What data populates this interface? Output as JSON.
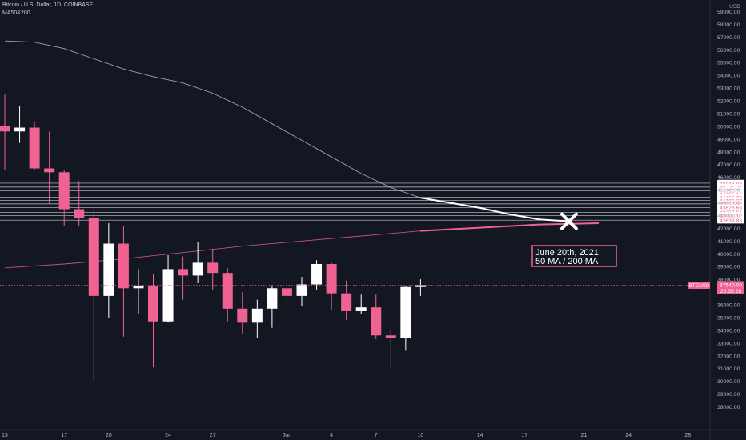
{
  "header": {
    "symbol_line": "Bitcoin / U.S. Dollar, 1D, COINBASE",
    "indicator": "MA50&200"
  },
  "price_axis": {
    "currency": "USD"
  },
  "colors": {
    "background": "#131722",
    "bull_candle": "#ffffff",
    "bear_candle": "#f06292",
    "ma50": "#cfd3dc",
    "ma200": "#f06292",
    "level_line": "#e8eaf0",
    "annotation_border": "#f06292"
  },
  "annotation": {
    "line1": "June 20th, 2021",
    "line2": "50 MA / 200 MA"
  },
  "chart_data": {
    "type": "candlestick",
    "title": "Bitcoin / U.S. Dollar, 1D, COINBASE",
    "x_ticks": [
      "13",
      "17",
      "20",
      "24",
      "27",
      "Jun",
      "4",
      "7",
      "10",
      "14",
      "17",
      "21",
      "24",
      "28"
    ],
    "y_ticks": [
      28000,
      29000,
      30000,
      31000,
      32000,
      33000,
      34000,
      35000,
      36000,
      37000,
      38000,
      39000,
      40000,
      41000,
      42000,
      43000,
      44000,
      45000,
      46000,
      47000,
      48000,
      49000,
      50000,
      51000,
      52000,
      53000,
      54000,
      55000,
      56000,
      57000,
      58000,
      59000
    ],
    "y_tick_labels": [
      "28000.00",
      "29000.00",
      "30000.00",
      "31000.00",
      "32000.00",
      "33000.00",
      "34000.00",
      "35000.00",
      "36000.00",
      "37000.00",
      "38000.00",
      "39000.00",
      "40000.00",
      "41000.00",
      "42000.00",
      "43000.00",
      "44000.00",
      "45000.00",
      "46000.00",
      "47000.00",
      "48000.00",
      "49000.00",
      "50000.00",
      "51000.00",
      "52000.00",
      "53000.00",
      "54000.00",
      "55000.00",
      "56000.00",
      "57000.00",
      "58000.00",
      "59000.00"
    ],
    "ylim": [
      27500,
      59700
    ],
    "dates": [
      "2021-05-13",
      "2021-05-14",
      "2021-05-15",
      "2021-05-16",
      "2021-05-17",
      "2021-05-18",
      "2021-05-19",
      "2021-05-20",
      "2021-05-21",
      "2021-05-22",
      "2021-05-23",
      "2021-05-24",
      "2021-05-25",
      "2021-05-26",
      "2021-05-27",
      "2021-05-28",
      "2021-05-29",
      "2021-05-30",
      "2021-05-31",
      "2021-06-01",
      "2021-06-02",
      "2021-06-03",
      "2021-06-04",
      "2021-06-05",
      "2021-06-06",
      "2021-06-07",
      "2021-06-08",
      "2021-06-09",
      "2021-06-10"
    ],
    "candles": [
      {
        "date": "2021-05-13",
        "open": 50000,
        "high": 52500,
        "low": 46600,
        "close": 49600
      },
      {
        "date": "2021-05-14",
        "open": 49600,
        "high": 51600,
        "low": 48700,
        "close": 49900
      },
      {
        "date": "2021-05-15",
        "open": 49900,
        "high": 50400,
        "low": 46600,
        "close": 46700
      },
      {
        "date": "2021-05-16",
        "open": 46700,
        "high": 49600,
        "low": 43900,
        "close": 46400
      },
      {
        "date": "2021-05-17",
        "open": 46400,
        "high": 46600,
        "low": 42200,
        "close": 43500
      },
      {
        "date": "2021-05-18",
        "open": 43500,
        "high": 45700,
        "low": 42200,
        "close": 42800
      },
      {
        "date": "2021-05-19",
        "open": 42800,
        "high": 43500,
        "low": 30000,
        "close": 36700
      },
      {
        "date": "2021-05-20",
        "open": 36700,
        "high": 42400,
        "low": 35000,
        "close": 40800
      },
      {
        "date": "2021-05-21",
        "open": 40800,
        "high": 42200,
        "low": 33500,
        "close": 37300
      },
      {
        "date": "2021-05-22",
        "open": 37300,
        "high": 38800,
        "low": 35300,
        "close": 37500
      },
      {
        "date": "2021-05-23",
        "open": 37500,
        "high": 38400,
        "low": 31100,
        "close": 34700
      },
      {
        "date": "2021-05-24",
        "open": 34700,
        "high": 39900,
        "low": 34600,
        "close": 38800
      },
      {
        "date": "2021-05-25",
        "open": 38800,
        "high": 39800,
        "low": 36400,
        "close": 38300
      },
      {
        "date": "2021-05-26",
        "open": 38300,
        "high": 40900,
        "low": 37700,
        "close": 39300
      },
      {
        "date": "2021-05-27",
        "open": 39300,
        "high": 40400,
        "low": 37200,
        "close": 38500
      },
      {
        "date": "2021-05-28",
        "open": 38500,
        "high": 38900,
        "low": 34700,
        "close": 35700
      },
      {
        "date": "2021-05-29",
        "open": 35700,
        "high": 37000,
        "low": 33700,
        "close": 34600
      },
      {
        "date": "2021-05-30",
        "open": 34600,
        "high": 36400,
        "low": 33400,
        "close": 35700
      },
      {
        "date": "2021-05-31",
        "open": 35700,
        "high": 37500,
        "low": 34200,
        "close": 37300
      },
      {
        "date": "2021-06-01",
        "open": 37300,
        "high": 37900,
        "low": 35700,
        "close": 36700
      },
      {
        "date": "2021-06-02",
        "open": 36700,
        "high": 38200,
        "low": 35900,
        "close": 37600
      },
      {
        "date": "2021-06-03",
        "open": 37600,
        "high": 39500,
        "low": 37200,
        "close": 39200
      },
      {
        "date": "2021-06-04",
        "open": 39200,
        "high": 39300,
        "low": 35600,
        "close": 36900
      },
      {
        "date": "2021-06-05",
        "open": 36900,
        "high": 37900,
        "low": 34800,
        "close": 35500
      },
      {
        "date": "2021-06-06",
        "open": 35500,
        "high": 36800,
        "low": 35300,
        "close": 35800
      },
      {
        "date": "2021-06-07",
        "open": 35800,
        "high": 36800,
        "low": 33300,
        "close": 33600
      },
      {
        "date": "2021-06-08",
        "open": 33600,
        "high": 34000,
        "low": 31000,
        "close": 33400
      },
      {
        "date": "2021-06-09",
        "open": 33400,
        "high": 37500,
        "low": 32400,
        "close": 37400
      },
      {
        "date": "2021-06-10",
        "open": 37400,
        "high": 38000,
        "low": 36700,
        "close": 37540
      }
    ],
    "series": [
      {
        "name": "MA50",
        "points": [
          [
            "2021-05-13",
            56700
          ],
          [
            "2021-05-15",
            56600
          ],
          [
            "2021-05-17",
            56100
          ],
          [
            "2021-05-19",
            55300
          ],
          [
            "2021-05-21",
            54500
          ],
          [
            "2021-05-23",
            53900
          ],
          [
            "2021-05-25",
            53400
          ],
          [
            "2021-05-27",
            52600
          ],
          [
            "2021-05-29",
            51500
          ],
          [
            "2021-05-31",
            50200
          ],
          [
            "2021-06-02",
            48900
          ],
          [
            "2021-06-04",
            47600
          ],
          [
            "2021-06-06",
            46300
          ],
          [
            "2021-06-08",
            45200
          ],
          [
            "2021-06-10",
            44400
          ],
          [
            "2021-06-12",
            44000
          ],
          [
            "2021-06-14",
            43600
          ],
          [
            "2021-06-16",
            43100
          ],
          [
            "2021-06-18",
            42700
          ],
          [
            "2021-06-20",
            42550
          ]
        ]
      },
      {
        "name": "MA200",
        "points": [
          [
            "2021-05-13",
            38900
          ],
          [
            "2021-05-17",
            39200
          ],
          [
            "2021-05-21",
            39600
          ],
          [
            "2021-05-25",
            40100
          ],
          [
            "2021-05-29",
            40600
          ],
          [
            "2021-06-02",
            41000
          ],
          [
            "2021-06-06",
            41400
          ],
          [
            "2021-06-10",
            41800
          ],
          [
            "2021-06-14",
            42050
          ],
          [
            "2021-06-18",
            42300
          ],
          [
            "2021-06-22",
            42400
          ]
        ]
      }
    ],
    "levels": [
      45543.86,
      45231.26,
      44957.7,
      44695.16,
      44425.0,
      44180.07,
      43913.86,
      43628.63,
      43252.51,
      43001.12,
      42639.83
    ],
    "level_labels": [
      "45543.86",
      "45231.26",
      "44957.70",
      "44695.16",
      "44425.00",
      "44180.07",
      "43913.86",
      "43628.63",
      "43252.51",
      "43001.12",
      "42639.83"
    ],
    "last_price": 37540,
    "last_price_label": "37540.00",
    "countdown": "20:35:26",
    "last_symbol": "BTCUSD",
    "legend": [
      "MA50&200"
    ],
    "grid": false
  }
}
